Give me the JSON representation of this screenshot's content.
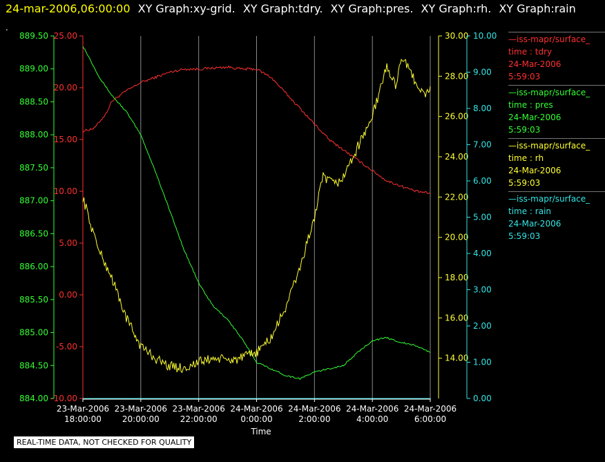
{
  "header": {
    "datetime": "24-mar-2006,06:00:00",
    "graph_titles": [
      "XY Graph:xy-grid.",
      "XY Graph:tdry.",
      "XY Graph:pres.",
      "XY Graph:rh.",
      "XY Graph:rain"
    ],
    "mark": "."
  },
  "legend": [
    {
      "title": "—iss-mapr/surface_",
      "var": "time : tdry",
      "date": "24-Mar-2006",
      "time": "5:59:03",
      "color": "#ff3030"
    },
    {
      "title": "—iss-mapr/surface_",
      "var": "time : pres",
      "date": "24-Mar-2006",
      "time": "5:59:03",
      "color": "#33ff33"
    },
    {
      "title": "—iss-mapr/surface_",
      "var": "time : rh",
      "date": "24-Mar-2006",
      "time": "5:59:03",
      "color": "#ffff33"
    },
    {
      "title": "—iss-mapr/surface_",
      "var": "time : rain",
      "date": "24-Mar-2006",
      "time": "5:59:03",
      "color": "#33e5e5"
    }
  ],
  "disclaimer": "REAL-TIME DATA, NOT CHECKED FOR QUALITY",
  "chart_data": {
    "type": "line",
    "xlabel": "Time",
    "x_ticks": [
      {
        "date": "23-Mar-2006",
        "time": "18:00:00",
        "hours": 0
      },
      {
        "date": "23-Mar-2006",
        "time": "20:00:00",
        "hours": 2
      },
      {
        "date": "23-Mar-2006",
        "time": "22:00:00",
        "hours": 4
      },
      {
        "date": "24-Mar-2006",
        "time": "0:00:00",
        "hours": 6
      },
      {
        "date": "24-Mar-2006",
        "time": "2:00:00",
        "hours": 8
      },
      {
        "date": "24-Mar-2006",
        "time": "4:00:00",
        "hours": 10
      },
      {
        "date": "24-Mar-2006",
        "time": "6:00:00",
        "hours": 12
      }
    ],
    "xlim": [
      0,
      12
    ],
    "grid": "vertical lines at x ticks",
    "axes": {
      "pres": {
        "color": "#33ff33",
        "side": "left",
        "ylim": [
          884.0,
          889.5
        ],
        "ticks": [
          "884.00",
          "884.50",
          "885.00",
          "885.50",
          "886.00",
          "886.50",
          "887.00",
          "887.50",
          "888.00",
          "888.50",
          "889.00",
          "889.50"
        ]
      },
      "tdry": {
        "color": "#ff3030",
        "side": "left",
        "ylim": [
          -10,
          25
        ],
        "ticks": [
          "-10.00",
          "-5.00",
          "0.00",
          "5.00",
          "10.00",
          "15.00",
          "20.00",
          "25.00"
        ]
      },
      "rh": {
        "color": "#ffff33",
        "side": "right",
        "ylim": [
          12,
          30
        ],
        "ticks": [
          "14.00",
          "16.00",
          "18.00",
          "20.00",
          "22.00",
          "24.00",
          "26.00",
          "28.00",
          "30.00"
        ]
      },
      "rain": {
        "color": "#33e5e5",
        "side": "right",
        "ylim": [
          0,
          10
        ],
        "ticks": [
          "0.00",
          "1.00",
          "2.00",
          "3.00",
          "4.00",
          "5.00",
          "6.00",
          "7.00",
          "8.00",
          "9.00",
          "10.00"
        ]
      }
    },
    "series": [
      {
        "name": "time : tdry",
        "axis": "tdry",
        "color": "#ff3030",
        "points": [
          [
            0,
            15.8
          ],
          [
            0.4,
            16.1
          ],
          [
            0.8,
            17.5
          ],
          [
            1.0,
            18.7
          ],
          [
            1.5,
            19.7
          ],
          [
            2.0,
            20.5
          ],
          [
            2.5,
            21.0
          ],
          [
            3.0,
            21.5
          ],
          [
            3.5,
            21.8
          ],
          [
            4.0,
            21.8
          ],
          [
            4.5,
            21.9
          ],
          [
            5.0,
            22.0
          ],
          [
            5.5,
            21.8
          ],
          [
            6.0,
            21.8
          ],
          [
            6.5,
            21.0
          ],
          [
            7.0,
            19.5
          ],
          [
            7.5,
            18.0
          ],
          [
            8.0,
            16.5
          ],
          [
            8.5,
            15.0
          ],
          [
            9.0,
            14.0
          ],
          [
            9.5,
            13.0
          ],
          [
            10.0,
            12.0
          ],
          [
            10.5,
            11.0
          ],
          [
            11.0,
            10.5
          ],
          [
            11.5,
            10.0
          ],
          [
            12.0,
            9.8
          ]
        ]
      },
      {
        "name": "time : pres",
        "axis": "pres",
        "color": "#33ff33",
        "points": [
          [
            0,
            889.35
          ],
          [
            0.3,
            889.1
          ],
          [
            0.6,
            888.85
          ],
          [
            1.0,
            888.6
          ],
          [
            1.5,
            888.35
          ],
          [
            2.0,
            888.0
          ],
          [
            2.5,
            887.45
          ],
          [
            3.0,
            886.85
          ],
          [
            3.5,
            886.25
          ],
          [
            4.0,
            885.75
          ],
          [
            4.5,
            885.4
          ],
          [
            5.0,
            885.2
          ],
          [
            5.5,
            884.9
          ],
          [
            6.0,
            884.55
          ],
          [
            6.5,
            884.45
          ],
          [
            7.0,
            884.35
          ],
          [
            7.5,
            884.3
          ],
          [
            8.0,
            884.4
          ],
          [
            8.5,
            884.45
          ],
          [
            9.0,
            884.5
          ],
          [
            9.5,
            884.7
          ],
          [
            10.0,
            884.88
          ],
          [
            10.5,
            884.92
          ],
          [
            11.0,
            884.85
          ],
          [
            11.5,
            884.8
          ],
          [
            12.0,
            884.7
          ]
        ]
      },
      {
        "name": "time : rh",
        "axis": "rh",
        "color": "#ffff33",
        "points": [
          [
            0,
            22.0
          ],
          [
            0.3,
            20.5
          ],
          [
            0.6,
            19.2
          ],
          [
            1.0,
            18.0
          ],
          [
            1.5,
            16.0
          ],
          [
            2.0,
            14.6
          ],
          [
            2.5,
            14.0
          ],
          [
            3.0,
            13.6
          ],
          [
            3.5,
            13.5
          ],
          [
            4.0,
            13.8
          ],
          [
            4.5,
            14.0
          ],
          [
            5.0,
            13.9
          ],
          [
            5.5,
            14.0
          ],
          [
            6.0,
            14.3
          ],
          [
            6.5,
            15.0
          ],
          [
            7.0,
            16.5
          ],
          [
            7.5,
            18.5
          ],
          [
            8.0,
            21.0
          ],
          [
            8.3,
            23.0
          ],
          [
            8.7,
            22.6
          ],
          [
            9.0,
            23.0
          ],
          [
            9.5,
            24.5
          ],
          [
            10.0,
            26.0
          ],
          [
            10.5,
            28.5
          ],
          [
            10.8,
            27.5
          ],
          [
            11.0,
            29.0
          ],
          [
            11.3,
            28.2
          ],
          [
            11.6,
            27.5
          ],
          [
            11.8,
            27.0
          ],
          [
            12.0,
            27.5
          ]
        ]
      },
      {
        "name": "time : rain",
        "axis": "rain",
        "color": "#33e5e5",
        "points": [
          [
            0,
            0
          ],
          [
            12,
            0
          ]
        ]
      }
    ]
  }
}
